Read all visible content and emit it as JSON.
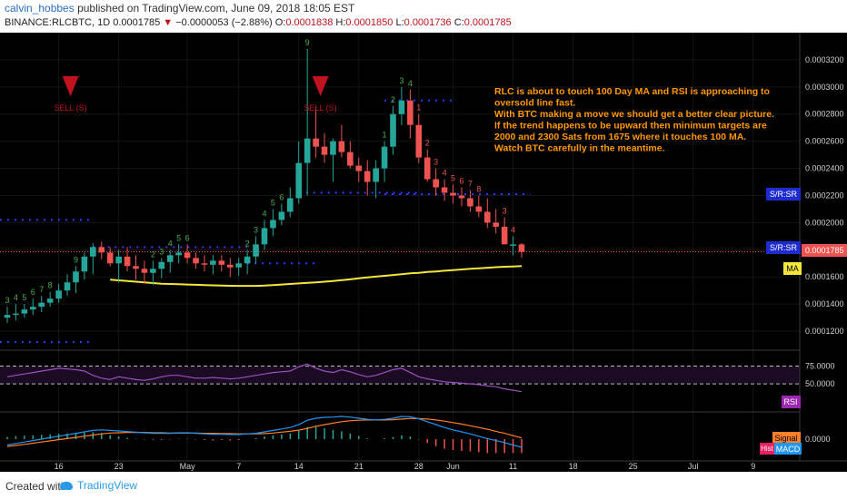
{
  "header": {
    "author": "calvin_hobbes",
    "published_text": " published on TradingView.com, June 09, 2018 18:05 EST",
    "symbol": "BINANCE:RLCBTC, 1D",
    "last_price": "0.0001785",
    "change_arrow": "▼",
    "change": "−0.0000053 (−2.88%)",
    "o_label": "O:",
    "o_value": "0.0001838",
    "h_label": "H:",
    "h_value": "0.0001850",
    "l_label": "L:",
    "l_value": "0.0001736",
    "c_label": "C:",
    "c_value": "0.0001785"
  },
  "annotation_lines": [
    "RLC is about to touch 100 Day MA and RSI is approaching to",
    "oversold line fast.",
    "With BTC making a move we should get a better clear picture.",
    "If the trend happens to be upward then minimum targets are",
    "2000 and 2300 Sats from 1675 where it touches 100 MA.",
    "Watch BTC carefully in the meantime."
  ],
  "sell_label": "SELL (S)",
  "price_axis_ticks": [
    "0.0003200",
    "0.0003000",
    "0.0002800",
    "0.0002600",
    "0.0002400",
    "0.0002200",
    "0.0002000",
    "0.0001800",
    "0.0001600",
    "0.0001400",
    "0.0001200"
  ],
  "current_price_badge": "0.0001785",
  "badges": {
    "sr_upper": "S/R:SR",
    "sr_lower": "S/R:SR",
    "ma": "MA",
    "rsi": "RSI",
    "signal": "Signal",
    "hist": "Hist",
    "macd": "MACD"
  },
  "rsi_ticks": [
    "75.0000",
    "50.0000"
  ],
  "macd_tick": "0.0000",
  "x_ticks": [
    "16",
    "23",
    "May",
    "7",
    "14",
    "21",
    "28",
    "Jun",
    "11",
    "18",
    "25",
    "Jul",
    "9"
  ],
  "footer": {
    "created_with": "Created with",
    "brand": "TradingView"
  },
  "colors": {
    "up": "#26a69a",
    "down": "#ef5350",
    "ma": "#f5e63c",
    "rsi": "#9c4fbf",
    "macd": "#2196f3",
    "signal": "#ff7f2a",
    "badge_blue": "#1e2ccf",
    "annotation": "#ff9800",
    "sell_arrow": "#c1121f"
  },
  "chart_data": {
    "type": "candlestick",
    "x": [
      "Apr 10",
      "Apr 11",
      "Apr 12",
      "Apr 13",
      "Apr 14",
      "Apr 15",
      "Apr 16",
      "Apr 17",
      "Apr 18",
      "Apr 19",
      "Apr 20",
      "Apr 21",
      "Apr 22",
      "Apr 23",
      "Apr 24",
      "Apr 25",
      "Apr 26",
      "Apr 27",
      "Apr 28",
      "Apr 29",
      "Apr 30",
      "May 1",
      "May 2",
      "May 3",
      "May 4",
      "May 5",
      "May 6",
      "May 7",
      "May 8",
      "May 9",
      "May 10",
      "May 11",
      "May 12",
      "May 13",
      "May 14",
      "May 15",
      "May 16",
      "May 17",
      "May 18",
      "May 19",
      "May 20",
      "May 21",
      "May 22",
      "May 23",
      "May 24",
      "May 25",
      "May 26",
      "May 27",
      "May 28",
      "May 29",
      "May 30",
      "May 31",
      "Jun 1",
      "Jun 2",
      "Jun 3",
      "Jun 4",
      "Jun 5",
      "Jun 6",
      "Jun 7",
      "Jun 8",
      "Jun 9"
    ],
    "open": [
      1.3,
      1.32,
      1.33,
      1.36,
      1.38,
      1.41,
      1.44,
      1.5,
      1.56,
      1.64,
      1.75,
      1.82,
      1.78,
      1.7,
      1.75,
      1.68,
      1.66,
      1.63,
      1.66,
      1.71,
      1.76,
      1.78,
      1.74,
      1.7,
      1.69,
      1.72,
      1.69,
      1.67,
      1.7,
      1.75,
      1.84,
      1.96,
      2.02,
      2.08,
      2.18,
      2.44,
      2.62,
      2.56,
      2.5,
      2.6,
      2.52,
      2.42,
      2.38,
      2.3,
      2.4,
      2.56,
      2.8,
      2.9,
      2.72,
      2.48,
      2.32,
      2.26,
      2.22,
      2.2,
      2.18,
      2.12,
      2.08,
      2.0,
      1.97,
      1.84,
      1.84
    ],
    "high": [
      1.38,
      1.4,
      1.4,
      1.44,
      1.46,
      1.49,
      1.55,
      1.62,
      1.68,
      1.78,
      1.85,
      1.86,
      1.82,
      1.8,
      1.82,
      1.76,
      1.72,
      1.72,
      1.74,
      1.8,
      1.84,
      1.84,
      1.78,
      1.76,
      1.76,
      1.76,
      1.74,
      1.74,
      1.8,
      1.9,
      2.02,
      2.1,
      2.14,
      2.26,
      2.6,
      3.28,
      2.86,
      2.66,
      2.62,
      2.72,
      2.6,
      2.48,
      2.46,
      2.46,
      2.6,
      2.86,
      3.0,
      2.98,
      2.8,
      2.54,
      2.4,
      2.32,
      2.28,
      2.26,
      2.24,
      2.2,
      2.18,
      2.1,
      2.04,
      1.9,
      1.85
    ],
    "low": [
      1.26,
      1.28,
      1.3,
      1.32,
      1.34,
      1.38,
      1.41,
      1.46,
      1.48,
      1.58,
      1.62,
      1.73,
      1.68,
      1.56,
      1.64,
      1.58,
      1.55,
      1.54,
      1.59,
      1.63,
      1.7,
      1.7,
      1.66,
      1.64,
      1.62,
      1.64,
      1.6,
      1.61,
      1.62,
      1.7,
      1.8,
      1.9,
      1.98,
      2.04,
      2.14,
      2.2,
      2.48,
      2.44,
      2.3,
      2.48,
      2.4,
      2.3,
      2.2,
      2.18,
      2.3,
      2.5,
      2.72,
      2.62,
      2.44,
      2.3,
      2.2,
      2.16,
      2.14,
      2.12,
      2.08,
      2.04,
      1.96,
      1.92,
      1.86,
      1.76,
      1.74
    ],
    "close": [
      1.32,
      1.33,
      1.36,
      1.38,
      1.41,
      1.44,
      1.5,
      1.56,
      1.64,
      1.75,
      1.82,
      1.78,
      1.7,
      1.75,
      1.68,
      1.66,
      1.63,
      1.66,
      1.71,
      1.76,
      1.78,
      1.74,
      1.7,
      1.69,
      1.72,
      1.69,
      1.67,
      1.7,
      1.75,
      1.84,
      1.96,
      2.02,
      2.08,
      2.18,
      2.44,
      2.62,
      2.56,
      2.5,
      2.6,
      2.52,
      2.42,
      2.38,
      2.3,
      2.4,
      2.56,
      2.8,
      2.9,
      2.72,
      2.48,
      2.32,
      2.26,
      2.22,
      2.2,
      2.18,
      2.12,
      2.08,
      2.0,
      1.97,
      1.84,
      1.84,
      1.785
    ],
    "ma100": [
      null,
      null,
      null,
      null,
      null,
      null,
      null,
      null,
      null,
      null,
      null,
      null,
      1.58,
      1.575,
      1.57,
      1.565,
      1.56,
      1.555,
      1.55,
      1.548,
      1.546,
      1.544,
      1.542,
      1.54,
      1.538,
      1.536,
      1.535,
      1.534,
      1.534,
      1.534,
      1.536,
      1.54,
      1.544,
      1.548,
      1.552,
      1.556,
      1.56,
      1.565,
      1.57,
      1.576,
      1.582,
      1.59,
      1.596,
      1.602,
      1.608,
      1.614,
      1.62,
      1.626,
      1.63,
      1.636,
      1.64,
      1.646,
      1.65,
      1.655,
      1.66,
      1.664,
      1.668,
      1.672,
      1.675,
      1.677,
      1.68
    ],
    "rsi": [
      60,
      62,
      64,
      66,
      68,
      70,
      72,
      71,
      70,
      68,
      62,
      58,
      56,
      60,
      58,
      56,
      55,
      57,
      60,
      62,
      62,
      60,
      58,
      58,
      59,
      58,
      57,
      58,
      60,
      62,
      64,
      66,
      67,
      68,
      74,
      78,
      72,
      68,
      66,
      70,
      67,
      63,
      60,
      62,
      66,
      70,
      72,
      66,
      60,
      57,
      55,
      53,
      52,
      51,
      50,
      49,
      47,
      46,
      43,
      41,
      39
    ],
    "macd": [
      -0.02,
      -0.015,
      -0.01,
      -0.005,
      0,
      0.005,
      0.01,
      0.015,
      0.02,
      0.025,
      0.03,
      0.032,
      0.03,
      0.028,
      0.026,
      0.024,
      0.022,
      0.02,
      0.02,
      0.02,
      0.022,
      0.022,
      0.02,
      0.018,
      0.017,
      0.017,
      0.016,
      0.016,
      0.018,
      0.02,
      0.025,
      0.03,
      0.035,
      0.04,
      0.05,
      0.065,
      0.072,
      0.075,
      0.076,
      0.078,
      0.076,
      0.072,
      0.068,
      0.066,
      0.068,
      0.072,
      0.078,
      0.077,
      0.07,
      0.06,
      0.05,
      0.04,
      0.032,
      0.025,
      0.018,
      0.01,
      0.002,
      -0.005,
      -0.012,
      -0.02,
      -0.028
    ],
    "signal": [
      -0.025,
      -0.022,
      -0.018,
      -0.014,
      -0.01,
      -0.006,
      -0.002,
      0.002,
      0.006,
      0.01,
      0.014,
      0.018,
      0.021,
      0.022,
      0.023,
      0.023,
      0.023,
      0.022,
      0.022,
      0.021,
      0.021,
      0.021,
      0.021,
      0.02,
      0.02,
      0.019,
      0.019,
      0.018,
      0.018,
      0.018,
      0.019,
      0.021,
      0.024,
      0.027,
      0.031,
      0.037,
      0.044,
      0.05,
      0.055,
      0.06,
      0.063,
      0.065,
      0.066,
      0.066,
      0.066,
      0.067,
      0.069,
      0.071,
      0.071,
      0.069,
      0.066,
      0.062,
      0.057,
      0.052,
      0.046,
      0.04,
      0.034,
      0.027,
      0.02,
      0.012,
      0.004
    ],
    "price_unit": "x 0.0001 BTC",
    "ylim": [
      1.06,
      3.4
    ],
    "rsi_levels": [
      75,
      50
    ],
    "sr_levels": [
      2.21,
      1.785
    ],
    "td_sequential": [
      {
        "idx": 35,
        "label": "9",
        "side": "up"
      },
      {
        "idx": 47,
        "label": "4",
        "side": "up"
      },
      {
        "idx": 46,
        "label": "3",
        "side": "up"
      },
      {
        "idx": 45,
        "label": "2",
        "side": "up"
      },
      {
        "idx": 44,
        "label": "1",
        "side": "up"
      },
      {
        "idx": 32,
        "label": "6",
        "side": "up"
      },
      {
        "idx": 31,
        "label": "5",
        "side": "up"
      },
      {
        "idx": 30,
        "label": "4",
        "side": "up"
      },
      {
        "idx": 29,
        "label": "3",
        "side": "up"
      },
      {
        "idx": 28,
        "label": "2",
        "side": "up"
      },
      {
        "idx": 17,
        "label": "2",
        "side": "up"
      },
      {
        "idx": 18,
        "label": "3",
        "side": "up"
      },
      {
        "idx": 19,
        "label": "4",
        "side": "up"
      },
      {
        "idx": 20,
        "label": "5",
        "side": "up"
      },
      {
        "idx": 21,
        "label": "6",
        "side": "up"
      },
      {
        "idx": 8,
        "label": "9",
        "side": "up"
      },
      {
        "idx": 0,
        "label": "3",
        "side": "up"
      },
      {
        "idx": 1,
        "label": "4",
        "side": "up"
      },
      {
        "idx": 2,
        "label": "5",
        "side": "up"
      },
      {
        "idx": 3,
        "label": "6",
        "side": "up"
      },
      {
        "idx": 4,
        "label": "7",
        "side": "up"
      },
      {
        "idx": 5,
        "label": "8",
        "side": "up"
      },
      {
        "idx": 48,
        "label": "1",
        "side": "down"
      },
      {
        "idx": 49,
        "label": "2",
        "side": "down"
      },
      {
        "idx": 50,
        "label": "3",
        "side": "down"
      },
      {
        "idx": 51,
        "label": "4",
        "side": "down"
      },
      {
        "idx": 52,
        "label": "5",
        "side": "down"
      },
      {
        "idx": 53,
        "label": "6",
        "side": "down"
      },
      {
        "idx": 54,
        "label": "7",
        "side": "down"
      },
      {
        "idx": 55,
        "label": "8",
        "side": "down"
      },
      {
        "idx": 58,
        "label": "3",
        "side": "down"
      },
      {
        "idx": 59,
        "label": "4",
        "side": "down"
      }
    ],
    "sell_signals_idx": [
      6,
      36
    ]
  }
}
